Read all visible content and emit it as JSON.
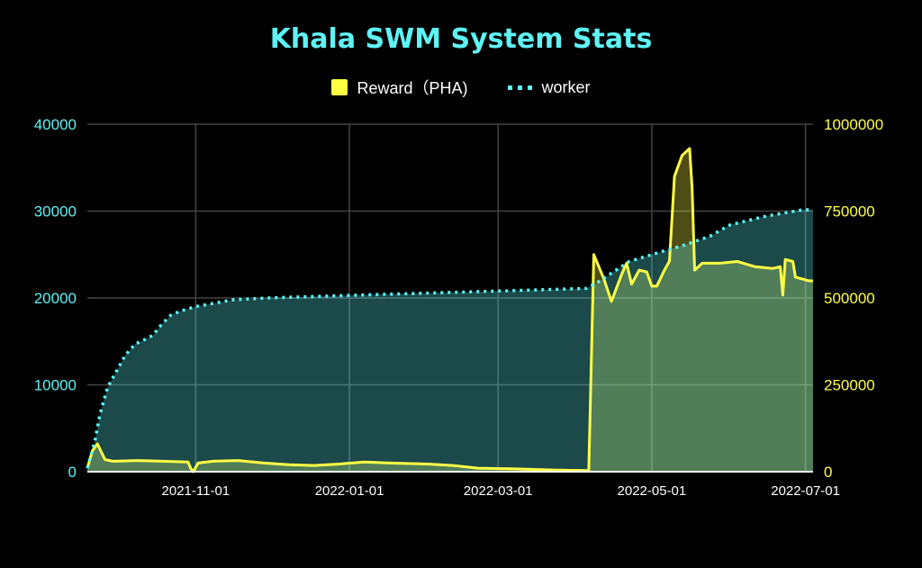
{
  "chart_data": {
    "type": "area",
    "title": "Khala SWM System Stats",
    "legend_position": "top-center",
    "grid": true,
    "x_range": [
      "2021-09-19",
      "2022-07-04"
    ],
    "x_ticks": [
      "2021-11-01",
      "2022-01-01",
      "2022-03-01",
      "2022-05-01",
      "2022-07-01"
    ],
    "left_axis": {
      "series": "worker",
      "ylim": [
        0,
        40000
      ],
      "ticks": [
        "0",
        "10000",
        "20000",
        "30000",
        "40000"
      ],
      "color": "#5ef3f5"
    },
    "right_axis": {
      "series": "Reward（PHA)",
      "ylim": [
        0,
        1000000
      ],
      "ticks": [
        "0",
        "250000",
        "500000",
        "750000",
        "1000000"
      ],
      "color": "#ffff44"
    },
    "series": [
      {
        "name": "Reward（PHA)",
        "axis": "right",
        "color": "#ffff44",
        "style": "solid",
        "x": [
          "2021-09-19",
          "2021-09-21",
          "2021-09-23",
          "2021-09-26",
          "2021-09-29",
          "2021-10-09",
          "2021-10-19",
          "2021-10-29",
          "2021-10-30",
          "2021-10-31",
          "2021-11-02",
          "2021-11-08",
          "2021-11-18",
          "2021-11-28",
          "2021-12-08",
          "2021-12-18",
          "2021-12-28",
          "2022-01-07",
          "2022-01-17",
          "2022-02-01",
          "2022-02-11",
          "2022-02-21",
          "2022-03-08",
          "2022-03-23",
          "2022-04-06",
          "2022-04-08",
          "2022-04-12",
          "2022-04-15",
          "2022-04-19",
          "2022-04-21",
          "2022-04-23",
          "2022-04-26",
          "2022-04-29",
          "2022-05-01",
          "2022-05-03",
          "2022-05-06",
          "2022-05-08",
          "2022-05-10",
          "2022-05-13",
          "2022-05-16",
          "2022-05-17",
          "2022-05-18",
          "2022-05-21",
          "2022-05-28",
          "2022-06-04",
          "2022-06-11",
          "2022-06-18",
          "2022-06-21",
          "2022-06-22",
          "2022-06-23",
          "2022-06-26",
          "2022-06-27",
          "2022-07-02",
          "2022-07-04"
        ],
        "values": [
          10000,
          60000,
          80000,
          35000,
          30000,
          32000,
          30000,
          28000,
          10000,
          0,
          25000,
          30000,
          32000,
          25000,
          20000,
          18000,
          22000,
          28000,
          25000,
          22000,
          18000,
          10000,
          8000,
          5000,
          3000,
          625000,
          555000,
          490000,
          567000,
          600000,
          540000,
          580000,
          575000,
          534000,
          534000,
          580000,
          606000,
          850000,
          910000,
          930000,
          815000,
          580000,
          600000,
          600000,
          605000,
          590000,
          585000,
          590000,
          508000,
          611000,
          605000,
          560000,
          550000,
          549000
        ]
      },
      {
        "name": "worker",
        "axis": "left",
        "color": "#5ef3f5",
        "style": "dotted",
        "x": [
          "2021-09-19",
          "2021-09-22",
          "2021-09-24",
          "2021-09-27",
          "2021-10-01",
          "2021-10-04",
          "2021-10-08",
          "2021-10-11",
          "2021-10-15",
          "2021-10-18",
          "2021-10-22",
          "2021-10-26",
          "2021-11-01",
          "2021-11-16",
          "2021-11-30",
          "2022-01-01",
          "2022-03-01",
          "2022-04-05",
          "2022-04-10",
          "2022-04-22",
          "2022-05-01",
          "2022-05-14",
          "2022-05-24",
          "2022-06-01",
          "2022-06-15",
          "2022-06-29",
          "2022-07-04"
        ],
        "values": [
          400,
          3500,
          6600,
          9700,
          11800,
          13400,
          14700,
          15100,
          15700,
          16800,
          18000,
          18500,
          19000,
          19800,
          20000,
          20300,
          20800,
          21100,
          21900,
          24200,
          25000,
          26100,
          27100,
          28400,
          29400,
          30100,
          30200
        ]
      }
    ]
  }
}
